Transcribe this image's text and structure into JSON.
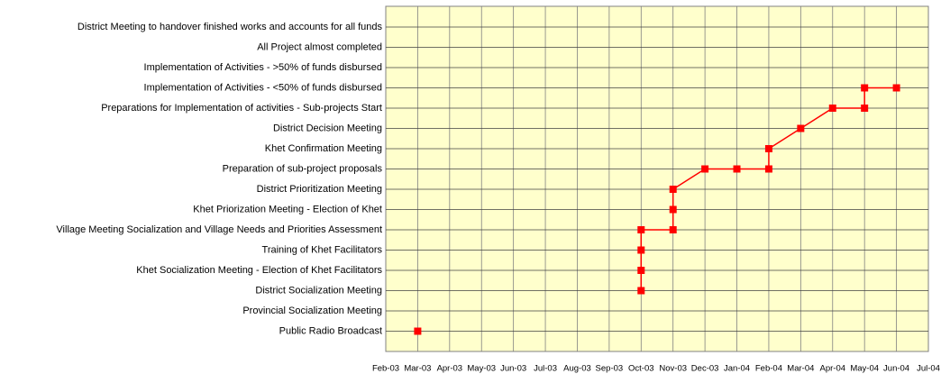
{
  "chart_data": {
    "type": "line",
    "x_categories": [
      "Feb-03",
      "Mar-03",
      "Apr-03",
      "May-03",
      "Jun-03",
      "Jul-03",
      "Aug-03",
      "Sep-03",
      "Oct-03",
      "Nov-03",
      "Dec-03",
      "Jan-04",
      "Feb-04",
      "Mar-04",
      "Apr-04",
      "May-04",
      "Jun-04",
      "Jul-04"
    ],
    "y_categories": [
      "Public Radio Broadcast",
      "Provincial Socialization Meeting",
      "District Socialization Meeting",
      "Khet Socialization Meeting - Election of Khet Facilitators",
      "Training of Khet Facilitators",
      "Village Meeting Socialization and Village Needs and Priorities Assessment",
      "Khet Priorization Meeting - Election of Khet",
      "District Prioritization Meeting",
      "Preparation of sub-project proposals",
      "Khet Confirmation Meeting",
      "District Decision Meeting",
      "Preparations for Implementation of activities - Sub-projects Start",
      "Implementation of Activities - <50% of funds disbursed",
      "Implementation of Activities - >50% of funds disbursed",
      "All Project almost completed",
      "District Meeting to handover finished works and accounts for all funds"
    ],
    "series": [
      {
        "color": "#ff0000",
        "x": [
          "Mar-03",
          null,
          "Oct-03",
          "Oct-03",
          "Oct-03",
          "Oct-03",
          "Nov-03",
          "Nov-03",
          "Nov-03",
          "Dec-03",
          "Jan-04",
          "Feb-04",
          "Feb-04",
          "Mar-04",
          "Apr-04",
          "May-04",
          "May-04",
          "Jun-04"
        ],
        "y": [
          "Public Radio Broadcast",
          null,
          "District Socialization Meeting",
          "Khet Socialization Meeting - Election of Khet Facilitators",
          "Training of Khet Facilitators",
          "Village Meeting Socialization and Village Needs and Priorities Assessment",
          "Village Meeting Socialization and Village Needs and Priorities Assessment",
          "Khet Priorization Meeting - Election of Khet",
          "District Prioritization Meeting",
          "Preparation of sub-project proposals",
          "Preparation of sub-project proposals",
          "Preparation of sub-project proposals",
          "Khet Confirmation Meeting",
          "District Decision Meeting",
          "Preparations for Implementation of activities - Sub-projects Start",
          "Preparations for Implementation of activities - Sub-projects Start",
          "Implementation of Activities - <50% of funds disbursed",
          "Implementation of Activities - <50% of funds disbursed"
        ]
      }
    ],
    "background": "#ffffcc",
    "grid": true
  }
}
